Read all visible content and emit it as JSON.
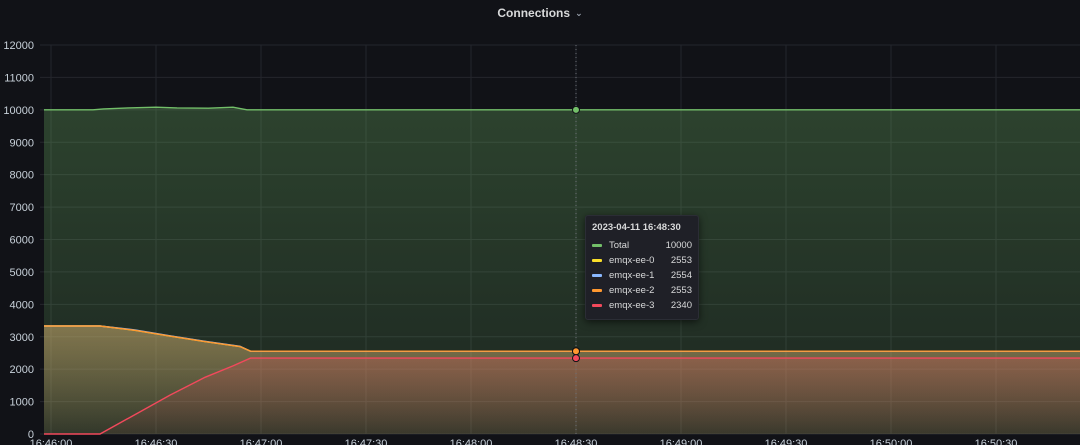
{
  "panel": {
    "title": "Connections",
    "menu_icon": "chevron-down-icon"
  },
  "tooltip": {
    "time": "2023-04-11 16:48:30",
    "rows": [
      {
        "name": "Total",
        "value": "10000",
        "color": "#73bf69"
      },
      {
        "name": "emqx-ee-0",
        "value": "2553",
        "color": "#fade2a"
      },
      {
        "name": "emqx-ee-1",
        "value": "2554",
        "color": "#8ab8ff"
      },
      {
        "name": "emqx-ee-2",
        "value": "2553",
        "color": "#ff9830"
      },
      {
        "name": "emqx-ee-3",
        "value": "2340",
        "color": "#f2495c"
      }
    ]
  },
  "chart_data": {
    "type": "line",
    "title": "Connections",
    "xlabel": "",
    "ylabel": "",
    "ylim": [
      0,
      12000
    ],
    "yticks": [
      0,
      1000,
      2000,
      3000,
      4000,
      5000,
      6000,
      7000,
      8000,
      9000,
      10000,
      11000,
      12000
    ],
    "xticks": [
      "16:46:00",
      "16:46:30",
      "16:47:00",
      "16:47:30",
      "16:48:00",
      "16:48:30",
      "16:49:00",
      "16:49:30",
      "16:50:00",
      "16:50:30"
    ],
    "x_unit": "seconds after first tick",
    "grid": true,
    "legend": "none",
    "hover_x": 150,
    "series": [
      {
        "name": "Total",
        "color": "#73bf69",
        "points": [
          [
            -2,
            10000
          ],
          [
            12,
            10000
          ],
          [
            15,
            10030
          ],
          [
            22,
            10060
          ],
          [
            30,
            10080
          ],
          [
            36,
            10060
          ],
          [
            45,
            10050
          ],
          [
            52,
            10080
          ],
          [
            56,
            10000
          ],
          [
            60,
            10000
          ],
          [
            68,
            10000
          ],
          [
            75,
            10000
          ],
          [
            90,
            10000
          ],
          [
            150,
            10000
          ],
          [
            300,
            10000
          ]
        ]
      },
      {
        "name": "emqx-ee-0",
        "color": "#fade2a",
        "points": [
          [
            -2,
            3333
          ],
          [
            14,
            3333
          ],
          [
            24,
            3200
          ],
          [
            34,
            3020
          ],
          [
            44,
            2850
          ],
          [
            54,
            2700
          ],
          [
            57,
            2553
          ],
          [
            150,
            2553
          ],
          [
            300,
            2553
          ]
        ]
      },
      {
        "name": "emqx-ee-1",
        "color": "#8ab8ff",
        "points": [
          [
            -2,
            3333
          ],
          [
            14,
            3333
          ],
          [
            24,
            3210
          ],
          [
            34,
            3030
          ],
          [
            44,
            2860
          ],
          [
            54,
            2705
          ],
          [
            57,
            2554
          ],
          [
            150,
            2554
          ],
          [
            300,
            2554
          ]
        ]
      },
      {
        "name": "emqx-ee-2",
        "color": "#ff9830",
        "points": [
          [
            -2,
            3333
          ],
          [
            14,
            3333
          ],
          [
            24,
            3200
          ],
          [
            34,
            3020
          ],
          [
            44,
            2850
          ],
          [
            54,
            2700
          ],
          [
            57,
            2553
          ],
          [
            150,
            2553
          ],
          [
            300,
            2553
          ]
        ]
      },
      {
        "name": "emqx-ee-3",
        "color": "#f2495c",
        "points": [
          [
            -2,
            0
          ],
          [
            14,
            0
          ],
          [
            24,
            600
          ],
          [
            34,
            1200
          ],
          [
            44,
            1750
          ],
          [
            52,
            2100
          ],
          [
            57,
            2340
          ],
          [
            150,
            2340
          ],
          [
            300,
            2340
          ]
        ]
      }
    ]
  }
}
